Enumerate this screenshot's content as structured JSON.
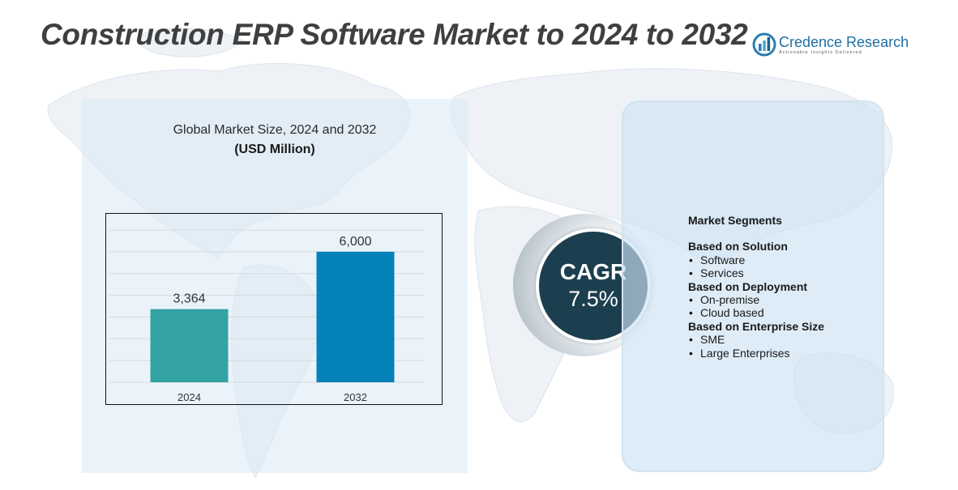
{
  "title": "Construction ERP Software Market to 2024 to 2032",
  "logo": {
    "name": "Credence Research",
    "tagline": "Actionable Insights Delivered",
    "icon": "bar-growth-logo-icon"
  },
  "colors": {
    "bar_2024": "#34a3a4",
    "bar_2032": "#0582b8",
    "cagr_circle": "#1c3f4f",
    "title_text": "#3f3f3f"
  },
  "chart_data": {
    "type": "bar",
    "title": "Global Market Size,  2024 and 2032",
    "subtitle": "(USD Million)",
    "categories": [
      "2024",
      "2032"
    ],
    "values": [
      3364,
      6000
    ],
    "value_labels": [
      "3,364",
      "6,000"
    ],
    "xlabel": "",
    "ylabel": "",
    "ylim": [
      0,
      7000
    ],
    "grid": true
  },
  "cagr": {
    "label": "CAGR",
    "value": "7.5%"
  },
  "segments": {
    "heading": "Market Segments",
    "groups": [
      {
        "title": "Based on Solution",
        "items": [
          "Software",
          "Services"
        ]
      },
      {
        "title": "Based on Deployment",
        "items": [
          "On-premise",
          "Cloud based"
        ]
      },
      {
        "title": "Based on Enterprise Size",
        "items": [
          "SME",
          "Large Enterprises"
        ]
      }
    ]
  }
}
